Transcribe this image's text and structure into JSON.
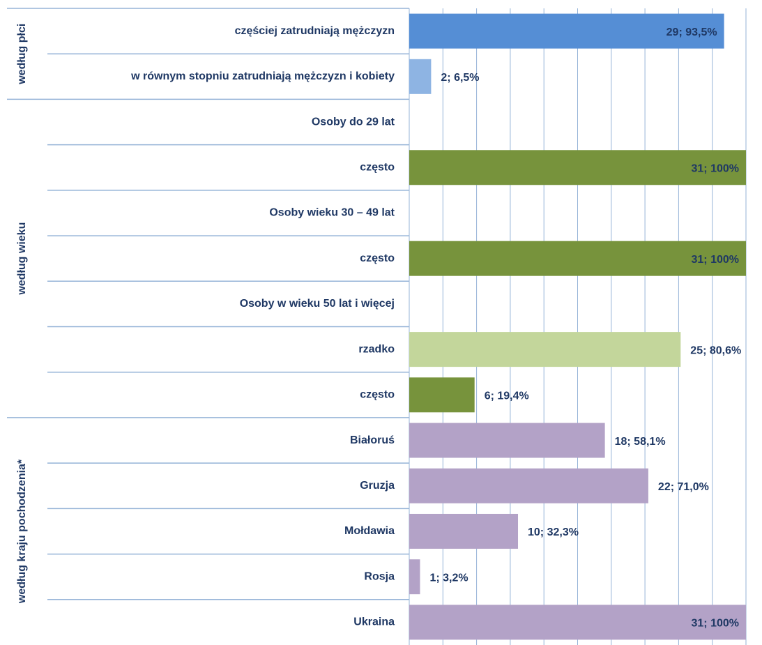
{
  "chart_data": {
    "type": "hbar",
    "categories": [
      "częściej zatrudniają mężczyzn",
      "w równym stopniu zatrudniają mężczyzn i kobiety",
      "Osoby do 29 lat",
      "często",
      "Osoby wieku 30 – 49 lat",
      "często",
      "Osoby w wieku 50 lat i więcej",
      "rzadko",
      "często",
      "Białoruś",
      "Gruzja",
      "Mołdawia",
      "Rosja",
      "Ukraina"
    ],
    "values": [
      93.5,
      6.5,
      null,
      100,
      null,
      100,
      null,
      80.6,
      19.4,
      58.1,
      71.0,
      32.3,
      3.2,
      100
    ],
    "value_labels": [
      "29; 93,5%",
      "2; 6,5%",
      null,
      "31; 100%",
      null,
      "31; 100%",
      null,
      "25; 80,6%",
      "6; 19,4%",
      "18; 58,1%",
      "22; 71,0%",
      "10; 32,3%",
      "1; 3,2%",
      "31; 100%"
    ],
    "colors": [
      "#558ed5",
      "#8eb4e3",
      null,
      "#77933c",
      null,
      "#77933c",
      null,
      "#c3d69b",
      "#77933c",
      "#b3a2c7",
      "#b3a2c7",
      "#b3a2c7",
      "#b3a2c7",
      "#b3a2c7"
    ],
    "groups": [
      {
        "label": "według płci",
        "size": 2
      },
      {
        "label": "według wieku",
        "size": 7
      },
      {
        "label": "według kraju pochodzenia*",
        "size": 5
      }
    ],
    "xlim": [
      0,
      100
    ],
    "xticks": [
      0,
      10,
      20,
      30,
      40,
      50,
      60,
      70,
      80,
      90,
      100
    ],
    "grid": true
  }
}
